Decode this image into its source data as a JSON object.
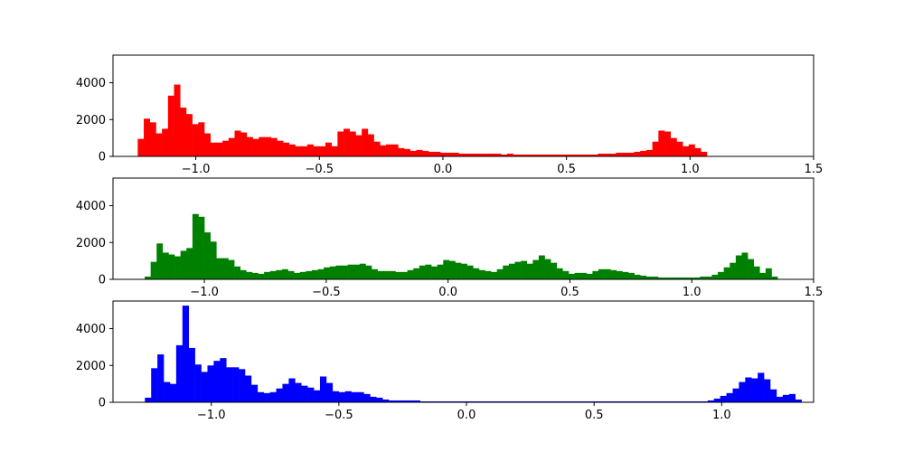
{
  "chart_data": [
    {
      "type": "bar",
      "histtype": "histogram",
      "title": "",
      "xlabel": "",
      "ylabel": "",
      "color": "#ff0000",
      "xlim": [
        -1.335,
        1.5
      ],
      "ylim": [
        0,
        5500
      ],
      "xticks": [
        -1.0,
        -0.5,
        0.0,
        0.5,
        1.0,
        1.5
      ],
      "xtick_labels": [
        "−1.0",
        "−0.5",
        "0.0",
        "0.5",
        "1.0",
        "1.5"
      ],
      "yticks": [
        0,
        2000,
        4000
      ],
      "ytick_labels": [
        "0",
        "2000",
        "4000"
      ],
      "bin_start": -1.235,
      "bin_width": 0.0245,
      "values": [
        950,
        2050,
        1850,
        1250,
        1500,
        3300,
        3900,
        2650,
        2300,
        1750,
        1850,
        1250,
        750,
        750,
        850,
        1000,
        1400,
        1300,
        1050,
        950,
        1050,
        1050,
        1000,
        850,
        750,
        650,
        550,
        550,
        650,
        550,
        550,
        750,
        550,
        1350,
        1500,
        1350,
        1150,
        1500,
        1200,
        800,
        600,
        650,
        650,
        450,
        400,
        300,
        350,
        300,
        250,
        250,
        200,
        200,
        200,
        150,
        150,
        150,
        150,
        150,
        150,
        150,
        100,
        150,
        100,
        100,
        100,
        100,
        100,
        100,
        100,
        100,
        100,
        100,
        100,
        100,
        100,
        100,
        150,
        150,
        150,
        200,
        200,
        200,
        250,
        300,
        350,
        800,
        1400,
        1350,
        1000,
        800,
        550,
        650,
        450,
        250
      ]
    },
    {
      "type": "bar",
      "histtype": "histogram",
      "title": "",
      "xlabel": "",
      "ylabel": "",
      "color": "#008000",
      "xlim": [
        -1.375,
        1.5
      ],
      "ylim": [
        0,
        5500
      ],
      "xticks": [
        -1.0,
        -0.5,
        0.0,
        0.5,
        1.0,
        1.5
      ],
      "xtick_labels": [
        "−1.0",
        "−0.5",
        "0.0",
        "0.5",
        "1.0",
        "1.5"
      ],
      "yticks": [
        0,
        2000,
        4000
      ],
      "ytick_labels": [
        "0",
        "2000",
        "4000"
      ],
      "bin_start": -1.245,
      "bin_width": 0.0245,
      "values": [
        150,
        950,
        1950,
        1450,
        1350,
        1250,
        1550,
        1700,
        3550,
        3400,
        2550,
        2050,
        1150,
        1150,
        1050,
        700,
        500,
        400,
        350,
        300,
        400,
        450,
        500,
        550,
        450,
        350,
        400,
        450,
        500,
        550,
        650,
        700,
        750,
        750,
        800,
        800,
        850,
        750,
        550,
        450,
        450,
        450,
        400,
        400,
        500,
        600,
        750,
        800,
        700,
        800,
        1050,
        1000,
        900,
        850,
        750,
        600,
        500,
        450,
        400,
        550,
        750,
        850,
        950,
        1000,
        850,
        1050,
        1300,
        1100,
        900,
        600,
        450,
        300,
        350,
        350,
        300,
        450,
        550,
        550,
        500,
        450,
        400,
        350,
        250,
        200,
        150,
        150,
        100,
        100,
        100,
        100,
        100,
        100,
        100,
        150,
        150,
        250,
        400,
        650,
        900,
        1300,
        1450,
        1100,
        700,
        350,
        600,
        150
      ]
    },
    {
      "type": "bar",
      "histtype": "histogram",
      "title": "",
      "xlabel": "",
      "ylabel": "",
      "color": "#0000ff",
      "xlim": [
        -1.385,
        1.36
      ],
      "ylim": [
        0,
        5500
      ],
      "xticks": [
        -1.0,
        -0.5,
        0.0,
        0.5,
        1.0
      ],
      "xtick_labels": [
        "−1.0",
        "−0.5",
        "0.0",
        "0.5",
        "1.0"
      ],
      "yticks": [
        0,
        2000,
        4000
      ],
      "ytick_labels": [
        "0",
        "2000",
        "4000"
      ],
      "bin_start": -1.26,
      "bin_width": 0.0245,
      "values": [
        250,
        1850,
        2600,
        1100,
        1000,
        3100,
        5250,
        2950,
        2050,
        1650,
        2000,
        2250,
        2400,
        1900,
        1900,
        1800,
        1450,
        950,
        550,
        500,
        550,
        750,
        1000,
        1300,
        1050,
        900,
        800,
        650,
        1400,
        1050,
        600,
        550,
        600,
        550,
        550,
        450,
        300,
        250,
        150,
        100,
        100,
        100,
        100,
        100,
        50,
        50,
        50,
        50,
        50,
        50,
        50,
        50,
        50,
        50,
        50,
        50,
        50,
        50,
        50,
        50,
        50,
        50,
        50,
        50,
        50,
        50,
        50,
        50,
        50,
        50,
        50,
        50,
        50,
        50,
        50,
        50,
        50,
        50,
        50,
        50,
        50,
        50,
        50,
        50,
        50,
        50,
        50,
        50,
        50,
        50,
        100,
        200,
        350,
        500,
        750,
        1100,
        1350,
        1300,
        1600,
        1250,
        700,
        300,
        400,
        450,
        150
      ]
    }
  ]
}
